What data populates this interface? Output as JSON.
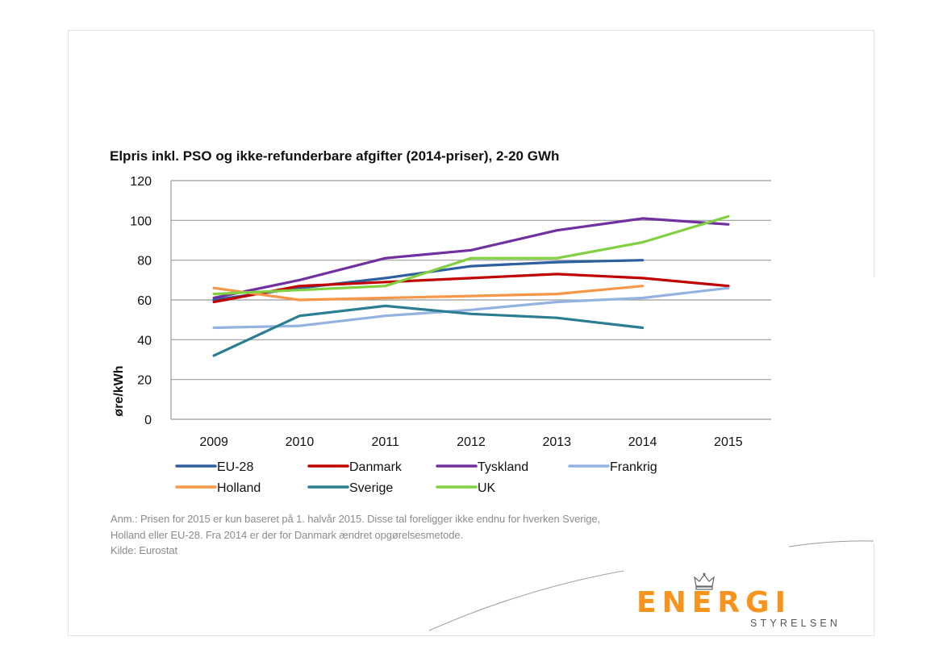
{
  "chart_data": {
    "type": "line",
    "title": "Elpris inkl. PSO og ikke-refunderbare afgifter (2014-priser), 2-20 GWh",
    "xlabel": "",
    "ylabel": "øre/kWh",
    "ylim": [
      0,
      120
    ],
    "yticks": [
      0,
      20,
      40,
      60,
      80,
      100,
      120
    ],
    "categories": [
      "2009",
      "2010",
      "2011",
      "2012",
      "2013",
      "2014",
      "2015"
    ],
    "grid": true,
    "legend_position": "bottom",
    "series": [
      {
        "name": "EU-28",
        "color": "#2e5f9e",
        "values": [
          60,
          66,
          71,
          77,
          79,
          80,
          null
        ]
      },
      {
        "name": "Danmark",
        "color": "#c00000",
        "values": [
          59,
          67,
          69,
          71,
          73,
          71,
          67
        ]
      },
      {
        "name": "Tyskland",
        "color": "#7030a0",
        "values": [
          61,
          70,
          81,
          85,
          95,
          101,
          98
        ]
      },
      {
        "name": "Frankrig",
        "color": "#95b3e0",
        "values": [
          46,
          47,
          52,
          55,
          59,
          61,
          66
        ]
      },
      {
        "name": "Holland",
        "color": "#f79646",
        "values": [
          66,
          60,
          61,
          62,
          63,
          67,
          null
        ]
      },
      {
        "name": "Sverige",
        "color": "#2b7d91",
        "values": [
          32,
          52,
          57,
          53,
          51,
          46,
          null
        ]
      },
      {
        "name": "UK",
        "color": "#80d040",
        "values": [
          63,
          65,
          67,
          81,
          81,
          89,
          102
        ]
      }
    ]
  },
  "note": {
    "lines": [
      "Anm.:  Prisen for 2015 er kun baseret på 1. halvår 2015. Disse tal foreligger ikke endnu for hverken Sverige,",
      "Holland eller EU-28. Fra 2014 er der for Danmark ændret opgørelsesmetode.",
      "Kilde: Eurostat"
    ]
  },
  "logo": {
    "word": "ENERGI",
    "sub": "STYRELSEN",
    "color": "#f7941d"
  }
}
